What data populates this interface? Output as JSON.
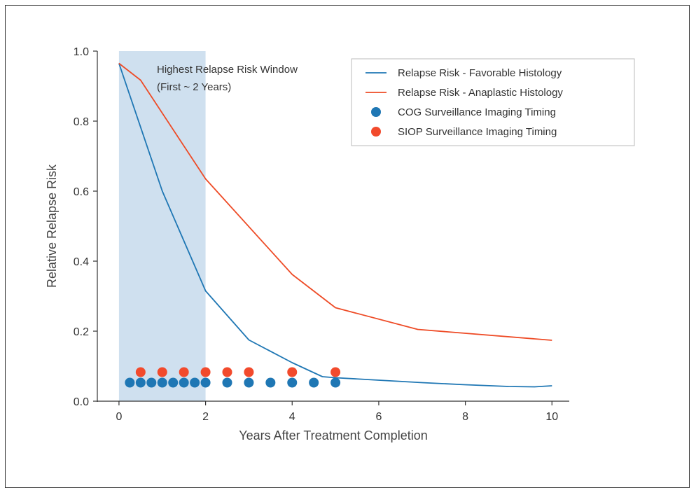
{
  "chart_data": {
    "type": "line",
    "title": "",
    "xlabel": "Years After Treatment Completion",
    "ylabel": "Relative Relapse Risk",
    "xlim": [
      -0.5,
      10.4
    ],
    "ylim": [
      0,
      1.0
    ],
    "xticks": [
      0,
      2,
      4,
      6,
      8,
      10
    ],
    "yticks": [
      0.0,
      0.2,
      0.4,
      0.6,
      0.8,
      1.0
    ],
    "ytick_labels": [
      "0.0",
      "0.2",
      "0.4",
      "0.6",
      "0.8",
      "1.0"
    ],
    "grid": false,
    "legend_position": "top-right",
    "shaded_region": {
      "x_start": 0,
      "x_end": 2,
      "color": "#cfe0ef",
      "label_lines": [
        "Highest Relapse Risk Window",
        "(First ~ 2 Years)"
      ]
    },
    "series": [
      {
        "name": "Relapse Risk - Favorable Histology",
        "kind": "line",
        "color": "#1f77b4",
        "x": [
          0,
          1,
          2,
          3,
          4,
          4.7,
          5,
          6,
          7,
          8,
          9,
          9.6,
          10
        ],
        "y": [
          0.965,
          0.6,
          0.315,
          0.175,
          0.11,
          0.07,
          0.067,
          0.06,
          0.053,
          0.047,
          0.042,
          0.041,
          0.044
        ]
      },
      {
        "name": "Relapse Risk - Anaplastic Histology",
        "kind": "line",
        "color": "#ee4b26",
        "x": [
          0,
          0.5,
          2,
          4,
          5,
          6.9,
          10
        ],
        "y": [
          0.965,
          0.917,
          0.635,
          0.362,
          0.267,
          0.205,
          0.174
        ]
      },
      {
        "name": "COG Surveillance Imaging Timing",
        "kind": "scatter",
        "color": "#1f77b4",
        "x": [
          0.25,
          0.5,
          0.75,
          1,
          1.25,
          1.5,
          1.75,
          2,
          2.5,
          3,
          3.5,
          4,
          4.5,
          5
        ],
        "y": [
          0.053,
          0.053,
          0.053,
          0.053,
          0.053,
          0.053,
          0.053,
          0.053,
          0.053,
          0.053,
          0.053,
          0.053,
          0.053,
          0.053
        ]
      },
      {
        "name": "SIOP Surveillance Imaging Timing",
        "kind": "scatter",
        "color": "#f24a2c",
        "x": [
          0.5,
          1,
          1.5,
          2,
          2.5,
          3,
          4,
          5
        ],
        "y": [
          0.083,
          0.083,
          0.083,
          0.083,
          0.083,
          0.083,
          0.083,
          0.083
        ]
      }
    ]
  }
}
